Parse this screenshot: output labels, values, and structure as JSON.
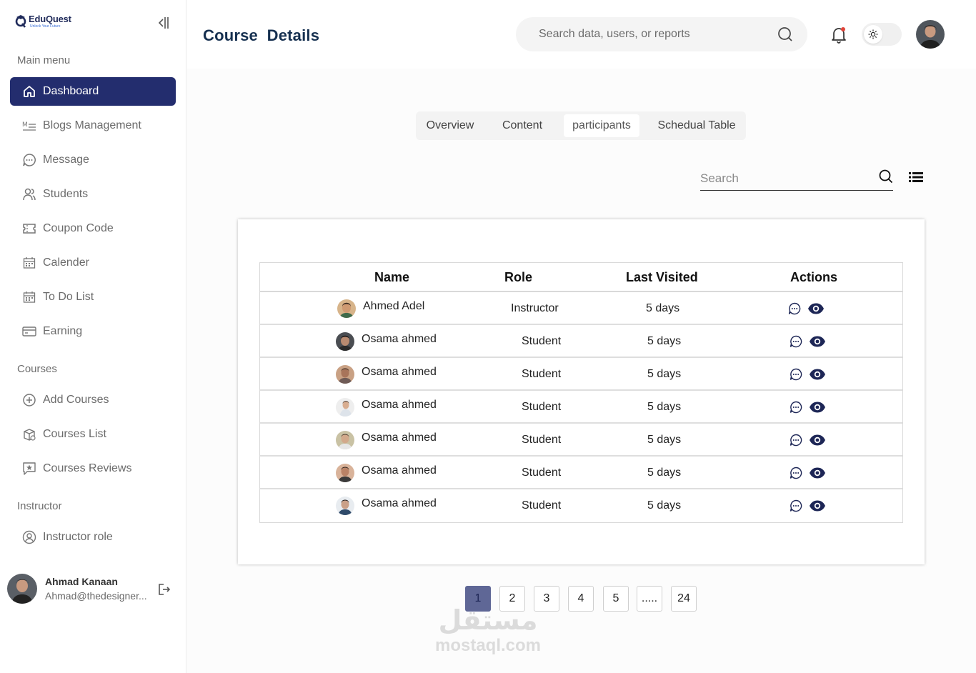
{
  "brand": {
    "name": "EduQuest",
    "tagline": "Unlock Your Future"
  },
  "sidebar": {
    "main_menu_label": "Main menu",
    "main_items": [
      {
        "label": "Dashboard",
        "icon": "home-icon",
        "active": true
      },
      {
        "label": "Blogs Management",
        "icon": "blog-list-icon"
      },
      {
        "label": "Message",
        "icon": "chat-icon"
      },
      {
        "label": "Students",
        "icon": "users-icon"
      },
      {
        "label": "Coupon Code",
        "icon": "ticket-icon"
      },
      {
        "label": "Calender",
        "icon": "calendar-icon"
      },
      {
        "label": "To Do List",
        "icon": "calendar-list-icon"
      },
      {
        "label": "Earning",
        "icon": "card-icon"
      }
    ],
    "courses_label": "Courses",
    "course_items": [
      {
        "label": "Add Courses",
        "icon": "plus-circle-icon"
      },
      {
        "label": "Courses List",
        "icon": "box-icon"
      },
      {
        "label": "Courses Reviews",
        "icon": "star-message-icon"
      }
    ],
    "instructor_label": "Instructor",
    "instructor_items": [
      {
        "label": "Instructor role",
        "icon": "user-circle-icon"
      }
    ],
    "profile": {
      "name": "Ahmad Kanaan",
      "email": "Ahmad@thedesigner..."
    }
  },
  "header": {
    "title": "Course  Details",
    "search_placeholder": "Search data, users, or reports"
  },
  "tabs": [
    {
      "label": "Overview"
    },
    {
      "label": "Content"
    },
    {
      "label": "participants",
      "active": true
    },
    {
      "label": "Schedual Table"
    }
  ],
  "table_search": {
    "placeholder": "Search"
  },
  "table": {
    "columns": [
      "Name",
      "Role",
      "Last Visited",
      "Actions"
    ],
    "rows": [
      {
        "name": "Ahmed Adel",
        "role": "Instructor",
        "last_visited": "5 days"
      },
      {
        "name": "Osama ahmed",
        "role": "Student",
        "last_visited": "5 days"
      },
      {
        "name": "Osama ahmed",
        "role": "Student",
        "last_visited": "5 days"
      },
      {
        "name": "Osama ahmed",
        "role": "Student",
        "last_visited": "5 days"
      },
      {
        "name": "Osama ahmed",
        "role": "Student",
        "last_visited": "5 days"
      },
      {
        "name": "Osama ahmed",
        "role": "Student",
        "last_visited": "5 days"
      },
      {
        "name": "Osama ahmed",
        "role": "Student",
        "last_visited": "5 days"
      }
    ]
  },
  "pagination": {
    "pages": [
      "1",
      "2",
      "3",
      "4",
      "5",
      ".....",
      "24"
    ],
    "current": "1"
  },
  "watermark": {
    "arabic": "مستقل",
    "latin": "mostaql.com"
  },
  "colors": {
    "primary": "#232d6e",
    "title": "#163050",
    "page_active": "#5f6796"
  }
}
